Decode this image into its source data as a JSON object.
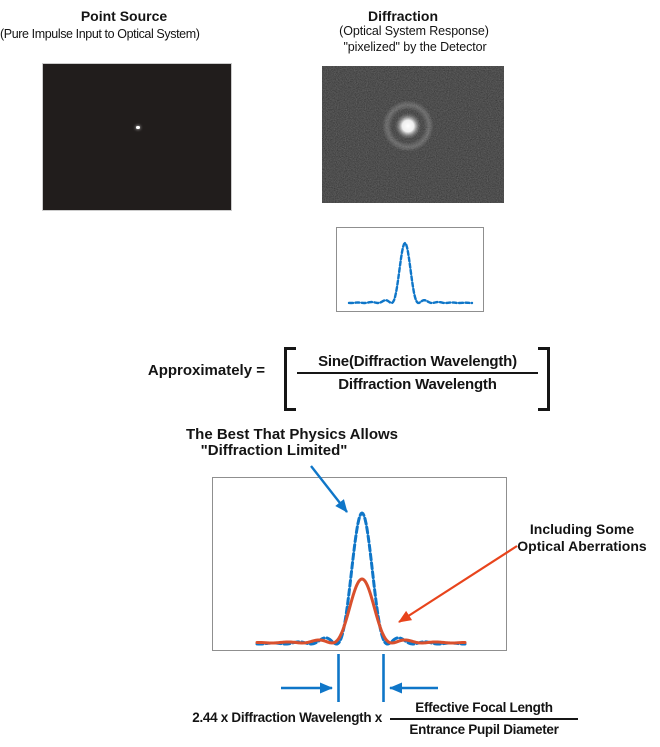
{
  "colors": {
    "blue": "#0f76c8",
    "red": "#e8441c",
    "red_curve": "#d9502d",
    "text": "#141414",
    "plot_border": "#8f8f8f",
    "image_border": "#cccccc",
    "point_source_bg": "#211d1c",
    "detector_bg": "#262626"
  },
  "point_source": {
    "title": "Point Source",
    "subtitle": "(Pure Impulse Input to Optical System)"
  },
  "diffraction": {
    "title": "Diffraction",
    "subtitle1": "(Optical System Response)",
    "subtitle2": "\"pixelized\" by the Detector"
  },
  "approx": {
    "label": "Approximately =",
    "numerator": "Sine(Diffraction Wavelength)",
    "denominator": "Diffraction Wavelength"
  },
  "annotations": {
    "best_line1": "The Best That Physics Allows",
    "best_line2": "\"Diffraction Limited\"",
    "aberration_line1": "Including Some",
    "aberration_line2": "Optical Aberrations"
  },
  "formula": {
    "prefix": "2.44 x Diffraction Wavelength x",
    "numerator": "Effective Focal Length",
    "denominator": "Entrance Pupil Diameter"
  },
  "chart_data": [
    {
      "id": "pixelized-psf-profile",
      "type": "line",
      "description": "Cross-section profile of the pixelized diffraction pattern",
      "series": [
        {
          "name": "pixelized PSF cross-section",
          "shape": "sinc2",
          "color": "blue",
          "amplitude": 60,
          "first_zero": 13.5,
          "center": 68,
          "baseline": 75,
          "x_range": [
            12,
            135
          ],
          "stroke_width": 2.4,
          "dash": "4 2.4"
        }
      ]
    },
    {
      "id": "psf-comparison",
      "type": "line",
      "description": "Diffraction-limited PSF vs PSF with some optical aberrations",
      "series": [
        {
          "name": "The Best That Physics Allows \"Diffraction Limited\"",
          "shape": "sinc2",
          "color": "blue",
          "amplitude": 131,
          "first_zero": 25.5,
          "center": 149,
          "baseline": 166,
          "x_range": [
            44,
            252
          ],
          "stroke_width": 3,
          "dash": "6 3"
        },
        {
          "name": "Including Some Optical Aberrations",
          "shape": "sinc2",
          "color": "red_curve",
          "amplitude": 64,
          "first_zero": 30,
          "center": 149,
          "baseline": 165,
          "x_range": [
            44,
            252
          ],
          "stroke_width": 3
        }
      ]
    }
  ]
}
